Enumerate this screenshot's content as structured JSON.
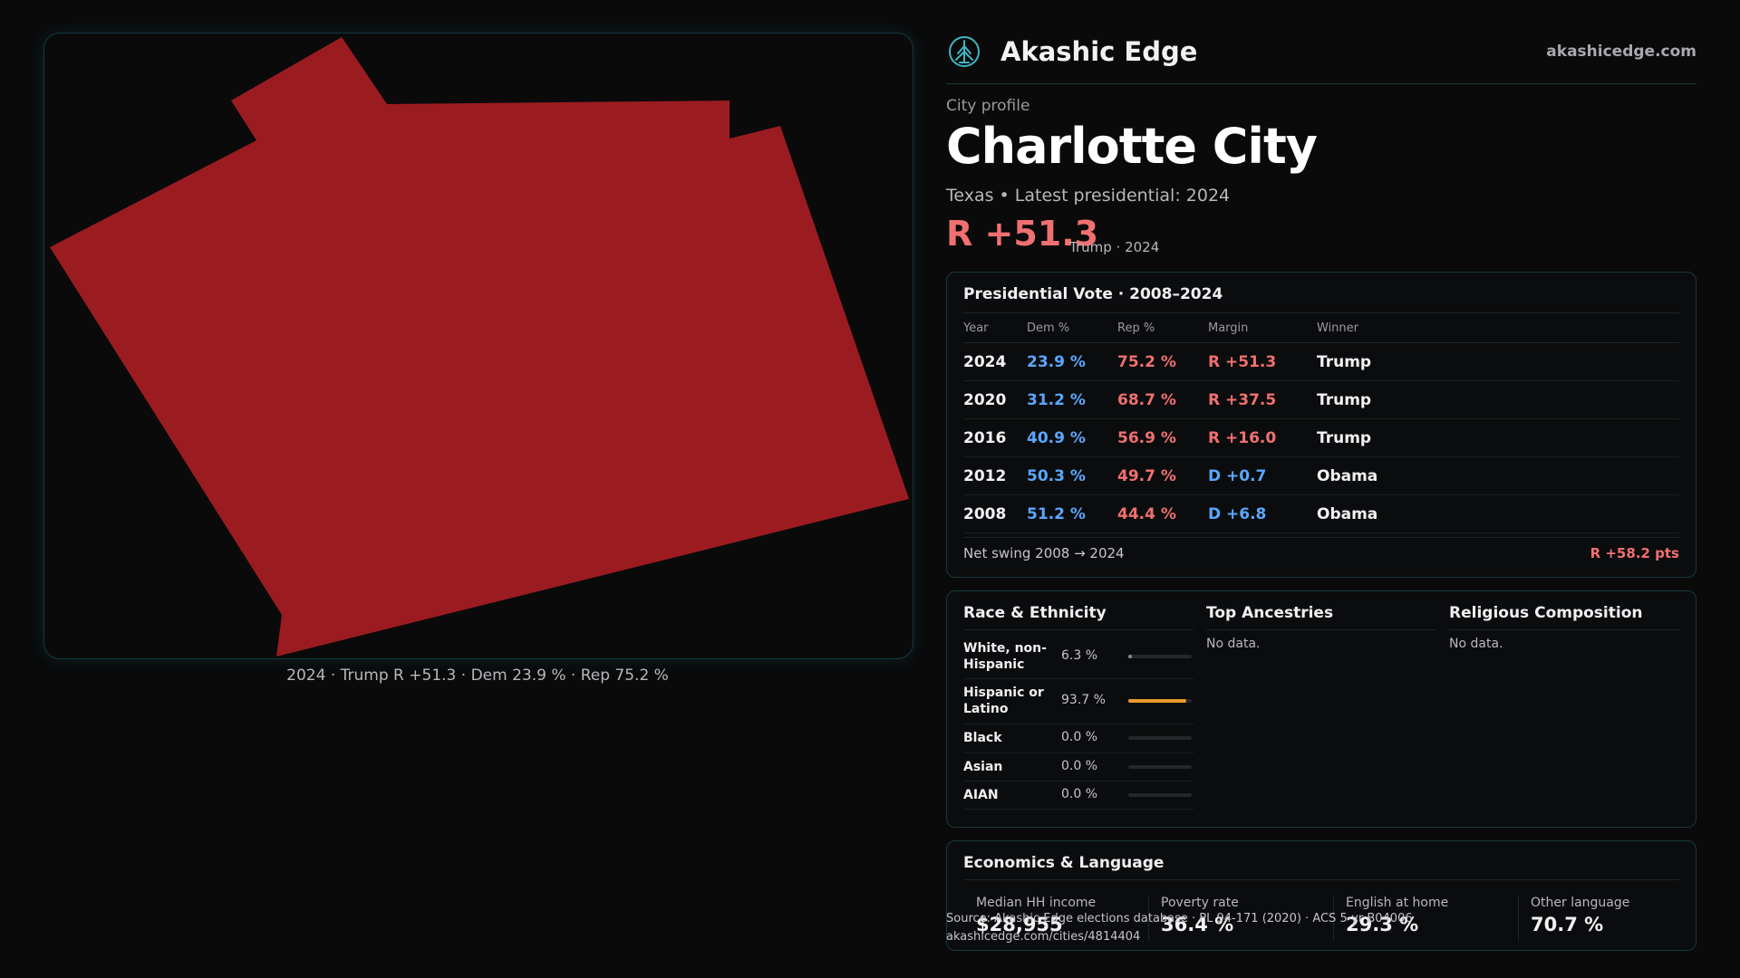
{
  "map": {
    "caption": "2024 · Trump R +51.3 · Dem 23.9 % · Rep 75.2 %",
    "fill_color": "#9b1c20"
  },
  "brand": {
    "name": "Akashic Edge",
    "url": "akashicedge.com",
    "logo_icon": "akashic-tree-icon"
  },
  "profile": {
    "eyebrow": "City profile",
    "title": "Charlotte City",
    "subtitle": "Texas • Latest presidential: 2024",
    "margin": "R +51.3",
    "margin_note": "Trump · 2024"
  },
  "vote": {
    "title": "Presidential Vote · 2008–2024",
    "headers": {
      "year": "Year",
      "dem": "Dem %",
      "rep": "Rep %",
      "margin": "Margin",
      "winner": "Winner"
    },
    "rows": [
      {
        "year": "2024",
        "dem": "23.9 %",
        "rep": "75.2 %",
        "margin": "R +51.3",
        "party": "rep",
        "winner": "Trump"
      },
      {
        "year": "2020",
        "dem": "31.2 %",
        "rep": "68.7 %",
        "margin": "R +37.5",
        "party": "rep",
        "winner": "Trump"
      },
      {
        "year": "2016",
        "dem": "40.9 %",
        "rep": "56.9 %",
        "margin": "R +16.0",
        "party": "rep",
        "winner": "Trump"
      },
      {
        "year": "2012",
        "dem": "50.3 %",
        "rep": "49.7 %",
        "margin": "D +0.7",
        "party": "dem",
        "winner": "Obama"
      },
      {
        "year": "2008",
        "dem": "51.2 %",
        "rep": "44.4 %",
        "margin": "D +6.8",
        "party": "dem",
        "winner": "Obama"
      }
    ],
    "swing_label": "Net swing 2008 → 2024",
    "swing_value": "R +58.2 pts"
  },
  "race": {
    "title": "Race & Ethnicity",
    "rows": [
      {
        "label": "White, non-Hispanic",
        "value": "6.3 %",
        "fraction": 0.063,
        "color": "#8a8a90"
      },
      {
        "label": "Hispanic or Latino",
        "value": "93.7 %",
        "fraction": 0.937,
        "color": "#e89a2c"
      },
      {
        "label": "Black",
        "value": "0.0 %",
        "fraction": 0.0,
        "color": "#8a8a90"
      },
      {
        "label": "Asian",
        "value": "0.0 %",
        "fraction": 0.0,
        "color": "#8a8a90"
      },
      {
        "label": "AIAN",
        "value": "0.0 %",
        "fraction": 0.0,
        "color": "#8a8a90"
      }
    ]
  },
  "ancestries": {
    "title": "Top Ancestries",
    "empty": "No data."
  },
  "religion": {
    "title": "Religious Composition",
    "empty": "No data."
  },
  "econ": {
    "title": "Economics & Language",
    "cells": [
      {
        "label": "Median HH income",
        "value": "$28,955"
      },
      {
        "label": "Poverty rate",
        "value": "36.4 %"
      },
      {
        "label": "English at home",
        "value": "29.3 %"
      },
      {
        "label": "Other language",
        "value": "70.7 %"
      }
    ]
  },
  "source": {
    "line1": "Source: Akashic Edge elections database · PL 94-171 (2020) · ACS 5-yr B04006",
    "line2": "akashicedge.com/cities/4814404"
  },
  "colors": {
    "dem": "#5aa7ff",
    "rep": "#f07070",
    "accent_border": "#173a3e"
  }
}
